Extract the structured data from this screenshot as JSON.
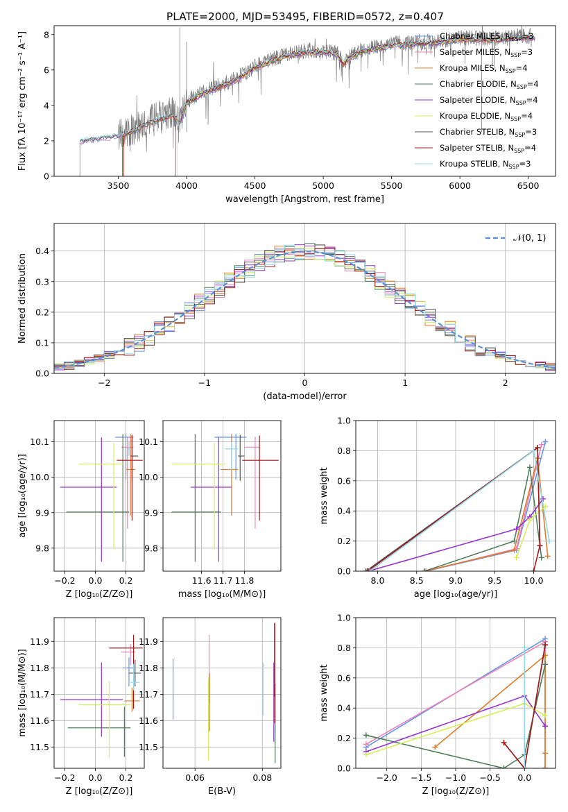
{
  "figure": {
    "title": "PLATE=2000, MJD=53495, FIBERID=0572, z=0.407"
  },
  "models": [
    {
      "name": "Chabrier MILES",
      "nssp": 3,
      "color": "#6495ed"
    },
    {
      "name": "Salpeter MILES",
      "nssp": 3,
      "color": "#ee82b4"
    },
    {
      "name": "Kroupa MILES",
      "nssp": 4,
      "color": "#e07b28"
    },
    {
      "name": "Chabrier ELODIE",
      "nssp": 4,
      "color": "#4e7d5b"
    },
    {
      "name": "Salpeter ELODIE",
      "nssp": 4,
      "color": "#9932cc"
    },
    {
      "name": "Kroupa ELODIE",
      "nssp": 4,
      "color": "#d4ed5a"
    },
    {
      "name": "Chabrier STELIB",
      "nssp": 3,
      "color": "#555555"
    },
    {
      "name": "Salpeter STELIB",
      "nssp": 4,
      "color": "#a01818"
    },
    {
      "name": "Kroupa STELIB",
      "nssp": 3,
      "color": "#8fd8e8"
    }
  ],
  "chart_data": [
    {
      "id": "spectrum",
      "type": "line",
      "xlabel": "wavelength [Angstrom, rest frame]",
      "ylabel": "Flux [fλ 10⁻¹⁷ erg cm⁻² s⁻¹ A⁻¹]",
      "xlim": [
        3030,
        6700
      ],
      "ylim": [
        0,
        8.5
      ],
      "xticks": [
        3500,
        4000,
        4500,
        5000,
        5500,
        6000,
        6500
      ],
      "yticks": [
        0,
        2,
        4,
        6,
        8
      ],
      "legend": "top-right",
      "data_color": "#808080",
      "data_envelope": {
        "x": [
          3220,
          3300,
          3400,
          3500,
          3600,
          3700,
          3800,
          3900,
          3950,
          4000,
          4100,
          4200,
          4300,
          4400,
          4500,
          4600,
          4700,
          4800,
          4900,
          5000,
          5100,
          5150,
          5200,
          5300,
          5400,
          5500,
          5600,
          5700,
          5800,
          5900,
          6000,
          6100,
          6200,
          6300,
          6400,
          6550
        ],
        "y": [
          2.0,
          2.1,
          2.2,
          2.3,
          2.6,
          3.0,
          3.4,
          3.6,
          3.1,
          4.2,
          4.7,
          5.0,
          5.3,
          5.7,
          6.2,
          6.5,
          6.8,
          7.0,
          7.1,
          7.0,
          7.0,
          6.4,
          6.8,
          7.2,
          7.3,
          7.5,
          7.5,
          7.6,
          7.6,
          7.7,
          7.8,
          7.8,
          7.8,
          7.8,
          7.9,
          7.9
        ]
      },
      "model_envelope": {
        "x": [
          3220,
          3300,
          3400,
          3500,
          3600,
          3700,
          3800,
          3900,
          3950,
          4000,
          4100,
          4200,
          4300,
          4400,
          4500,
          4600,
          4700,
          4800,
          4900,
          5000,
          5100,
          5150,
          5200,
          5300,
          5400,
          5500,
          5600,
          5700,
          5800,
          5900,
          6000,
          6100,
          6200,
          6300,
          6400,
          6550
        ],
        "y": [
          1.95,
          2.05,
          2.15,
          2.25,
          2.5,
          2.9,
          3.2,
          3.4,
          3.0,
          4.1,
          4.6,
          4.9,
          5.2,
          5.6,
          6.1,
          6.4,
          6.7,
          6.9,
          7.0,
          7.0,
          6.9,
          6.3,
          6.7,
          7.1,
          7.2,
          7.4,
          7.4,
          7.5,
          7.5,
          7.6,
          7.7,
          7.7,
          7.7,
          7.7,
          7.8,
          7.8
        ]
      },
      "model_start_wavelength": [
        3220,
        3220,
        3530,
        3530,
        3920,
        3930,
        3220,
        3540,
        3220
      ]
    },
    {
      "id": "residuals",
      "type": "histogram",
      "xlabel": "(data-model)/error",
      "ylabel": "Normed distribution",
      "xlim": [
        -2.5,
        2.5
      ],
      "ylim": [
        0,
        0.49
      ],
      "xticks": [
        -2,
        -1,
        0,
        1,
        2
      ],
      "yticks": [
        0.0,
        0.1,
        0.2,
        0.3,
        0.4
      ],
      "legend": "top-right",
      "normal_curve": {
        "label": "𝒩(0, 1)",
        "mean": 0,
        "sigma": 1,
        "color": "#5b8fd9"
      },
      "bin_width": 0.1
    },
    {
      "id": "age-vs-Z",
      "type": "scatter-errorbar",
      "xlabel": "Z [log₁₀(Z/Z⊙)]",
      "ylabel": "age  [log₁₀(age/yr)]",
      "xlim": [
        -0.27,
        0.32
      ],
      "ylim": [
        9.735,
        10.16
      ],
      "xticks": [
        -0.2,
        0.0,
        0.2
      ],
      "yticks": [
        9.8,
        9.9,
        10.0,
        10.1
      ],
      "points": [
        {
          "x": 0.2,
          "y": 10.113,
          "xerr": [
            0.07,
            0.05
          ],
          "yerr": [
            0.12,
            0.01
          ]
        },
        {
          "x": 0.21,
          "y": 10.085,
          "xerr": [
            0.04,
            0.04
          ],
          "yerr": [
            0.23,
            0.03
          ]
        },
        {
          "x": 0.23,
          "y": 10.022,
          "xerr": [
            0.03,
            0.03
          ],
          "yerr": [
            0.13,
            0.1
          ]
        },
        {
          "x": 0.18,
          "y": 9.902,
          "xerr": [
            0.37,
            0.04
          ],
          "yerr": [
            0.14,
            0.22
          ]
        },
        {
          "x": 0.04,
          "y": 9.972,
          "xerr": [
            0.27,
            0.1
          ],
          "yerr": [
            0.21,
            0.14
          ]
        },
        {
          "x": 0.12,
          "y": 10.037,
          "xerr": [
            0.23,
            0.06
          ],
          "yerr": [
            0.24,
            0.06
          ]
        },
        {
          "x": 0.24,
          "y": 10.06,
          "xerr": [
            0.01,
            0.04
          ],
          "yerr": [
            0.07,
            0.06
          ]
        },
        {
          "x": 0.24,
          "y": 10.048,
          "xerr": [
            0.1,
            0.07
          ],
          "yerr": [
            0.17,
            0.07
          ]
        },
        {
          "x": 0.22,
          "y": 10.08,
          "xerr": [
            0.01,
            0.01
          ],
          "yerr": [
            0.02,
            0.02
          ]
        }
      ]
    },
    {
      "id": "age-vs-mass",
      "type": "scatter-errorbar",
      "xlabel": "mass [log₁₀(M/M⊙)]",
      "ylabel": "",
      "xlim": [
        11.42,
        11.97
      ],
      "ylim": [
        9.735,
        10.16
      ],
      "xticks": [
        11.6,
        11.7,
        11.8
      ],
      "yticks": [
        9.8,
        9.9,
        10.0,
        10.1
      ],
      "points": [
        {
          "x": 11.76,
          "y": 10.113,
          "xerr": [
            0.1,
            0.05
          ],
          "yerr": [
            0.12,
            0.01
          ]
        },
        {
          "x": 11.85,
          "y": 10.085,
          "xerr": [
            0.05,
            0.02
          ],
          "yerr": [
            0.23,
            0.03
          ]
        },
        {
          "x": 11.74,
          "y": 10.022,
          "xerr": [
            0.05,
            0.03
          ],
          "yerr": [
            0.13,
            0.1
          ]
        },
        {
          "x": 11.57,
          "y": 9.902,
          "xerr": [
            0.11,
            0.12
          ],
          "yerr": [
            0.14,
            0.22
          ]
        },
        {
          "x": 11.68,
          "y": 9.972,
          "xerr": [
            0.13,
            0.06
          ],
          "yerr": [
            0.21,
            0.14
          ]
        },
        {
          "x": 11.66,
          "y": 10.037,
          "xerr": [
            0.2,
            0.05
          ],
          "yerr": [
            0.24,
            0.06
          ]
        },
        {
          "x": 11.78,
          "y": 10.06,
          "xerr": [
            0.01,
            0.02
          ],
          "yerr": [
            0.07,
            0.06
          ]
        },
        {
          "x": 11.87,
          "y": 10.048,
          "xerr": [
            0.08,
            0.09
          ],
          "yerr": [
            0.17,
            0.07
          ]
        },
        {
          "x": 11.74,
          "y": 10.08,
          "xerr": [
            0.03,
            0.03
          ],
          "yerr": [
            0.06,
            0.02
          ]
        }
      ]
    },
    {
      "id": "weight-vs-age",
      "type": "line",
      "xlabel": "age  [log₁₀(age/yr)]",
      "ylabel": "mass weight",
      "xlim": [
        7.72,
        10.28
      ],
      "ylim": [
        0,
        1.0
      ],
      "xticks": [
        8.0,
        8.5,
        9.0,
        9.5,
        10.0
      ],
      "yticks": [
        0.0,
        0.2,
        0.4,
        0.6,
        0.8,
        1.0
      ],
      "series": [
        {
          "x": [
            8.62,
            9.78,
            10.15
          ],
          "y": [
            0.0,
            0.14,
            0.86
          ]
        },
        {
          "x": [
            8.62,
            9.78,
            10.1
          ],
          "y": [
            0.0,
            0.15,
            0.84
          ]
        },
        {
          "x": [
            8.6,
            9.75,
            10.05,
            10.18
          ],
          "y": [
            0.0,
            0.14,
            0.75,
            0.1
          ]
        },
        {
          "x": [
            8.6,
            9.75,
            9.95,
            10.1
          ],
          "y": [
            0.0,
            0.2,
            0.69,
            0.09
          ]
        },
        {
          "x": [
            7.88,
            9.78,
            9.95,
            10.12
          ],
          "y": [
            0.0,
            0.28,
            0.36,
            0.48
          ]
        },
        {
          "x": [
            9.78,
            9.95,
            10.15
          ],
          "y": [
            0.09,
            0.34,
            0.43
          ]
        },
        {
          "x": [
            7.85,
            10.05,
            10.08
          ],
          "y": [
            0.0,
            0.82,
            0.17
          ]
        },
        {
          "x": [
            7.87,
            10.05,
            10.08,
            10.0
          ],
          "y": [
            0.0,
            0.82,
            0.17,
            0.0
          ]
        },
        {
          "x": [
            7.9,
            10.0,
            10.2
          ],
          "y": [
            0.0,
            0.8,
            0.2
          ]
        }
      ]
    },
    {
      "id": "mass-vs-Z",
      "type": "scatter-errorbar",
      "xlabel": "Z [log₁₀(Z/Z⊙)]",
      "ylabel": "mass [log₁₀(M/M⊙)]",
      "xlim": [
        -0.27,
        0.32
      ],
      "ylim": [
        11.42,
        11.99
      ],
      "xticks": [
        -0.2,
        0.0,
        0.2
      ],
      "yticks": [
        11.5,
        11.6,
        11.7,
        11.8,
        11.9
      ],
      "points": [
        {
          "x": 0.22,
          "y": 11.8,
          "xerr": [
            0.04,
            0.03
          ],
          "yerr": [
            0.07,
            0.04
          ]
        },
        {
          "x": 0.23,
          "y": 11.86,
          "xerr": [
            0.06,
            0.03
          ],
          "yerr": [
            0.05,
            0.03
          ]
        },
        {
          "x": 0.24,
          "y": 11.675,
          "xerr": [
            0.05,
            0.05
          ],
          "yerr": [
            0.04,
            0.05
          ]
        },
        {
          "x": 0.19,
          "y": 11.573,
          "xerr": [
            0.37,
            0.04
          ],
          "yerr": [
            0.11,
            0.08
          ]
        },
        {
          "x": 0.04,
          "y": 11.68,
          "xerr": [
            0.27,
            0.14
          ],
          "yerr": [
            0.14,
            0.14
          ]
        },
        {
          "x": 0.09,
          "y": 11.66,
          "xerr": [
            0.2,
            0.14
          ],
          "yerr": [
            0.2,
            0.09
          ]
        },
        {
          "x": 0.26,
          "y": 11.78,
          "xerr": [
            0.04,
            0.04
          ],
          "yerr": [
            0.05,
            0.05
          ]
        },
        {
          "x": 0.25,
          "y": 11.875,
          "xerr": [
            0.16,
            0.06
          ],
          "yerr": [
            0.23,
            0.05
          ]
        },
        {
          "x": 0.25,
          "y": 11.745,
          "xerr": [
            0.02,
            0.04
          ],
          "yerr": [
            0.03,
            0.07
          ]
        }
      ]
    },
    {
      "id": "mass-vs-ebv",
      "type": "scatter-errorbar",
      "xlabel": "E(B-V)",
      "ylabel": "",
      "xlim": [
        0.0505,
        0.0855
      ],
      "ylim": [
        11.42,
        11.99
      ],
      "xticks": [
        0.06,
        0.08
      ],
      "yticks": [
        11.5,
        11.6,
        11.7,
        11.8,
        11.9
      ],
      "points": [
        {
          "x": 0.0535,
          "y": 11.725,
          "xerr": [
            0,
            0
          ],
          "yerr": [
            0.12,
            0.11
          ]
        },
        {
          "x": 0.0642,
          "y": 11.795,
          "xerr": [
            0,
            0
          ],
          "yerr": [
            0.13,
            0.13
          ]
        },
        {
          "x": 0.0643,
          "y": 11.68,
          "xerr": [
            0,
            0
          ],
          "yerr": [
            0.12,
            0.1
          ]
        },
        {
          "x": 0.0838,
          "y": 11.54,
          "xerr": [
            0,
            0
          ],
          "yerr": [
            0.1,
            0.2
          ]
        },
        {
          "x": 0.0834,
          "y": 11.62,
          "xerr": [
            0,
            0
          ],
          "yerr": [
            0.1,
            0.2
          ]
        },
        {
          "x": 0.064,
          "y": 11.62,
          "xerr": [
            0,
            0
          ],
          "yerr": [
            0.17,
            0.14
          ]
        },
        {
          "x": 0.0836,
          "y": 11.83,
          "xerr": [
            0,
            0
          ],
          "yerr": [
            0.14,
            0.14
          ]
        },
        {
          "x": 0.0837,
          "y": 11.79,
          "xerr": [
            0,
            0
          ],
          "yerr": [
            0.2,
            0.18
          ]
        },
        {
          "x": 0.0802,
          "y": 11.76,
          "xerr": [
            0,
            0
          ],
          "yerr": [
            0.14,
            0.06
          ]
        }
      ]
    },
    {
      "id": "weight-vs-Z",
      "type": "line",
      "xlabel": "Z [log₁₀(Z/Z⊙)]",
      "ylabel": "mass weight",
      "xlim": [
        -2.45,
        0.45
      ],
      "ylim": [
        0,
        1.0
      ],
      "xticks": [
        -2.0,
        -1.5,
        -1.0,
        -0.5,
        0.0
      ],
      "yticks": [
        0.0,
        0.2,
        0.4,
        0.6,
        0.8,
        1.0
      ],
      "series": [
        {
          "x": [
            -2.3,
            0.3,
            0.3
          ],
          "y": [
            0.14,
            0.86,
            0.0
          ]
        },
        {
          "x": [
            -2.3,
            0.3,
            0.3
          ],
          "y": [
            0.16,
            0.84,
            0.0
          ]
        },
        {
          "x": [
            -1.3,
            0.3,
            0.3,
            0.3
          ],
          "y": [
            0.14,
            0.75,
            0.1,
            0.0
          ]
        },
        {
          "x": [
            -2.3,
            -0.3,
            0.0,
            0.3
          ],
          "y": [
            0.22,
            0.0,
            0.09,
            0.69
          ]
        },
        {
          "x": [
            -2.3,
            0.0,
            0.3
          ],
          "y": [
            0.11,
            0.48,
            0.28
          ]
        },
        {
          "x": [
            -2.3,
            0.0,
            0.3
          ],
          "y": [
            0.09,
            0.43,
            0.35
          ]
        },
        {
          "x": [
            -0.3,
            0.0,
            0.3
          ],
          "y": [
            0.17,
            0.0,
            0.82
          ]
        },
        {
          "x": [
            -0.3,
            0.0,
            0.3
          ],
          "y": [
            0.17,
            0.0,
            0.82
          ]
        },
        {
          "x": [
            0.0,
            0.0,
            0.0
          ],
          "y": [
            0.2,
            0.0,
            0.8
          ]
        }
      ]
    }
  ]
}
